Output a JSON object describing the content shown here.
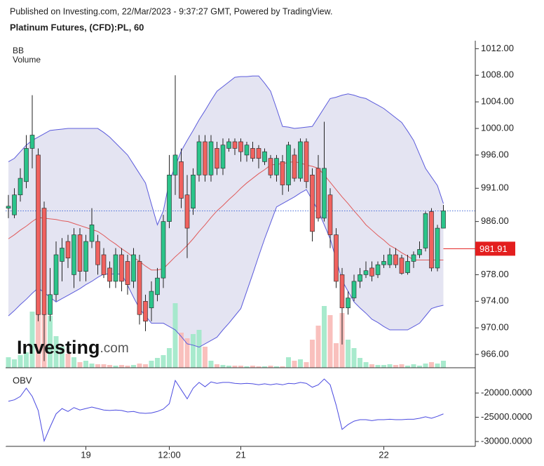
{
  "header": {
    "published": "Published on Investing.com, 22/Mar/2023 - 9:37:27 GMT, Powered by TradingView.",
    "symbol": "Platinum Futures, (CFD):PL, 60"
  },
  "chart_data": [
    {
      "type": "candlestick",
      "indicator_labels": [
        "BB",
        "Volume"
      ],
      "logo": "Investing",
      "logo_suffix": ".com",
      "categories": [
        null,
        null,
        null,
        null,
        null,
        null,
        null,
        null,
        null,
        null,
        null,
        null,
        null,
        "19",
        null,
        null,
        null,
        null,
        null,
        null,
        null,
        null,
        null,
        null,
        null,
        null,
        null,
        "12:00",
        null,
        null,
        null,
        null,
        null,
        null,
        null,
        null,
        null,
        null,
        null,
        "21",
        null,
        null,
        null,
        null,
        null,
        null,
        null,
        null,
        null,
        null,
        null,
        null,
        null,
        null,
        null,
        null,
        null,
        null,
        null,
        null,
        null,
        null,
        null,
        "22",
        null,
        null,
        null,
        null,
        null,
        null,
        null,
        null,
        null,
        null
      ],
      "candles": {
        "open": [
          988,
          987,
          990,
          992,
          997,
          996,
          988,
          972,
          975,
          980,
          983,
          978,
          984,
          978.5,
          983,
          983,
          981,
          979,
          977,
          981,
          980,
          977,
          980,
          974,
          973,
          975,
          977.5,
          986,
          993,
          995,
          990,
          988,
          993,
          998,
          993,
          997,
          994,
          997,
          998,
          998,
          996,
          997,
          997,
          995,
          995.5,
          993,
          995,
          991.5,
          996,
          992.5,
          998,
          993,
          994,
          986.5,
          990,
          984,
          978,
          973,
          974.5,
          977,
          978,
          979,
          978,
          979.5,
          979.5,
          981,
          980.5,
          978.3,
          980,
          981,
          982,
          987.5,
          979,
          985
        ],
        "high": [
          990,
          991,
          994,
          999,
          1005,
          997,
          989,
          979,
          983,
          983.5,
          984,
          985,
          985,
          984,
          988,
          984,
          982,
          980,
          982,
          982,
          981,
          982,
          981,
          975,
          977,
          979,
          987,
          996,
          1008,
          997,
          993,
          994,
          999,
          999,
          999,
          998,
          998.5,
          998.5,
          998.5,
          998.5,
          998,
          998,
          997.5,
          997,
          996,
          996,
          996,
          998,
          997,
          998.5,
          998.5,
          994,
          996,
          1001,
          991,
          985,
          979,
          975.5,
          978,
          979,
          980,
          980,
          980,
          981,
          982,
          982,
          981,
          981,
          981.5,
          983,
          987.5,
          988,
          985.5,
          988.5
        ],
        "low": [
          986.5,
          986.5,
          989,
          991,
          994,
          971,
          965,
          971,
          974,
          977,
          979,
          976,
          977,
          977,
          982,
          978,
          977.5,
          976,
          976,
          975.5,
          975,
          976,
          970.5,
          969.5,
          971,
          974,
          976,
          985,
          990,
          988,
          980.5,
          987,
          992,
          992,
          992,
          993,
          993,
          996.5,
          996,
          995,
          995,
          995,
          994,
          994.5,
          992.5,
          992,
          990,
          990.5,
          992,
          992,
          991,
          983,
          986,
          986,
          982,
          976,
          967.5,
          972,
          974,
          976,
          977.5,
          977,
          977.5,
          979,
          979,
          979,
          978,
          978,
          979,
          980.5,
          981.5,
          978.5,
          978.5,
          985
        ],
        "close": [
          988.3,
          990,
          992.5,
          997,
          999,
          972,
          972,
          975,
          981,
          982,
          980.5,
          984,
          978.5,
          983,
          985.5,
          979.5,
          978,
          977,
          981,
          977,
          976.5,
          981,
          972,
          971,
          975.5,
          977.5,
          986,
          993,
          996,
          989.5,
          985,
          993,
          998,
          993,
          998,
          994,
          997.5,
          998,
          997,
          996.5,
          997.5,
          995.5,
          995.5,
          996.5,
          993,
          995.5,
          991.5,
          997.5,
          992.5,
          998,
          992,
          984.5,
          986.5,
          994,
          984,
          977,
          973,
          974.5,
          977,
          978,
          978.6,
          977.8,
          979.5,
          980,
          981,
          979.5,
          978.2,
          980,
          981,
          981.8,
          987.2,
          979,
          985,
          987.6
        ]
      },
      "bb_upper": [
        995,
        995.5,
        996.5,
        997.5,
        998.2,
        998.7,
        999.2,
        999.7,
        999.8,
        999.9,
        1000,
        1000,
        1000,
        1000,
        1000,
        1000,
        999.4,
        998.7,
        997.8,
        996.9,
        996,
        994.6,
        993.2,
        991.8,
        988.6,
        985.5,
        987.6,
        992,
        994.3,
        996.6,
        998.2,
        999.7,
        1001.3,
        1002.7,
        1004.2,
        1005.6,
        1006.3,
        1007,
        1007.7,
        1007.8,
        1007.8,
        1007.9,
        1007.9,
        1006.8,
        1005.6,
        1003,
        1000.3,
        1000.2,
        1000,
        1000.1,
        1000.2,
        1000.3,
        1001.7,
        1003.1,
        1004.5,
        1004.7,
        1005,
        1005.2,
        1005,
        1004.7,
        1004.5,
        1004,
        1003.5,
        1003,
        1002.3,
        1001.6,
        1000.9,
        999.6,
        998.2,
        996.1,
        994,
        992.7,
        991.4,
        988.7
      ],
      "bb_middle": [
        983.4,
        984,
        984.7,
        985.3,
        986,
        986.6,
        986.5,
        986.4,
        986.3,
        986.1,
        986,
        985.7,
        985.4,
        985.1,
        984.8,
        984.5,
        983.9,
        983.2,
        982.6,
        981.9,
        981.3,
        980.6,
        980,
        979.3,
        978.7,
        978.7,
        978.9,
        979.8,
        980.7,
        981.5,
        982.4,
        983.4,
        984.5,
        985.5,
        986.6,
        987.6,
        988.4,
        989.3,
        990.1,
        991,
        991.8,
        992.5,
        993.2,
        993.8,
        994.5,
        994.6,
        994.7,
        994.9,
        995,
        994.8,
        994.5,
        994.3,
        994,
        993,
        991.9,
        990.8,
        989.7,
        988.7,
        987.6,
        986.6,
        985.5,
        984.7,
        983.9,
        983.2,
        982.4,
        981.9,
        981.3,
        980.8,
        980.2,
        980.2,
        980.2,
        980.2,
        980.2,
        980.2
      ],
      "bb_lower": [
        971.8,
        972.6,
        973.5,
        974.3,
        975.2,
        976,
        975.3,
        974.6,
        973.9,
        974.4,
        974.9,
        975.4,
        975.9,
        976.5,
        977,
        977.6,
        978.1,
        978.1,
        978.1,
        978.1,
        976.4,
        974.6,
        972.9,
        971.8,
        970.7,
        970.7,
        970.7,
        970.2,
        969.7,
        968.7,
        967.6,
        967.4,
        967.1,
        967.6,
        968.1,
        968.6,
        969.7,
        970.7,
        971.8,
        972.9,
        975.5,
        978.1,
        980.8,
        983.4,
        985.8,
        988.2,
        988.7,
        989.2,
        989.7,
        990.3,
        990.8,
        989.2,
        987.6,
        985.5,
        983.4,
        980.3,
        977.1,
        975.5,
        973.9,
        973,
        972.2,
        971.3,
        970.8,
        970.2,
        969.7,
        969.7,
        969.7,
        969.7,
        970.2,
        970.7,
        971.8,
        972.9,
        973.2,
        973.4
      ],
      "volume": [
        15,
        12,
        18,
        22,
        80,
        82,
        78,
        74,
        45,
        30,
        20,
        15,
        8,
        10,
        6,
        5,
        5,
        4,
        3,
        4,
        3,
        4,
        6,
        5,
        10,
        14,
        18,
        28,
        92,
        50,
        42,
        48,
        54,
        30,
        10,
        5,
        4,
        3,
        3,
        3,
        2,
        3,
        2,
        2,
        3,
        2,
        2,
        15,
        10,
        12,
        8,
        40,
        60,
        88,
        75,
        35,
        78,
        40,
        28,
        14,
        8,
        5,
        4,
        4,
        5,
        4,
        5,
        3,
        5,
        3,
        6,
        8,
        6,
        10
      ],
      "last_price": {
        "value": 981.91,
        "label": "981.91"
      },
      "ylim": [
        964,
        1013.2
      ],
      "yticks": [
        {
          "value": 1012,
          "label": "1012.00"
        },
        {
          "value": 1008,
          "label": "1008.00"
        },
        {
          "value": 1004,
          "label": "1004.00"
        },
        {
          "value": 1000,
          "label": "1000.00"
        },
        {
          "value": 996,
          "label": "996.00"
        },
        {
          "value": 991,
          "label": "991.00"
        },
        {
          "value": 986,
          "label": "986.00"
        },
        {
          "value": 978,
          "label": "978.00"
        },
        {
          "value": 974,
          "label": "974.00"
        },
        {
          "value": 970,
          "label": "970.00"
        },
        {
          "value": 966,
          "label": "966.00"
        }
      ],
      "colors": {
        "up": "#2bc48a",
        "down": "#f0625f",
        "vol_up": "#9ee8c8",
        "vol_down": "#f8b9b6",
        "band": "#5b5bdc",
        "band_fill": "#e4e4f2",
        "middle": "#e05a5a"
      }
    },
    {
      "type": "line",
      "title": "OBV",
      "values": [
        -21700,
        -21400,
        -20700,
        -19000,
        -20700,
        -23600,
        -29900,
        -27000,
        -24300,
        -23200,
        -23800,
        -23000,
        -23500,
        -23200,
        -22900,
        -23200,
        -23500,
        -23600,
        -23500,
        -23600,
        -23900,
        -23800,
        -24100,
        -24200,
        -24100,
        -23800,
        -23300,
        -22200,
        -17400,
        -19300,
        -21200,
        -19000,
        -17800,
        -18700,
        -17700,
        -18000,
        -17800,
        -17800,
        -18000,
        -18100,
        -18000,
        -18100,
        -18300,
        -18100,
        -18300,
        -18100,
        -18300,
        -18000,
        -18100,
        -17800,
        -18000,
        -18800,
        -18300,
        -17100,
        -18300,
        -22500,
        -27500,
        -26500,
        -25800,
        -25500,
        -25500,
        -25700,
        -25500,
        -25500,
        -25400,
        -25500,
        -25500,
        -25400,
        -25400,
        -25200,
        -24900,
        -25200,
        -24800,
        -24300
      ],
      "color": "#4a4ae0",
      "ylim": [
        -31000,
        -15650
      ],
      "yticks": [
        {
          "value": -20000,
          "label": "-20000.0000"
        },
        {
          "value": -25000,
          "label": "-25000.0000"
        },
        {
          "value": -30000,
          "label": "-30000.0000"
        }
      ]
    }
  ]
}
